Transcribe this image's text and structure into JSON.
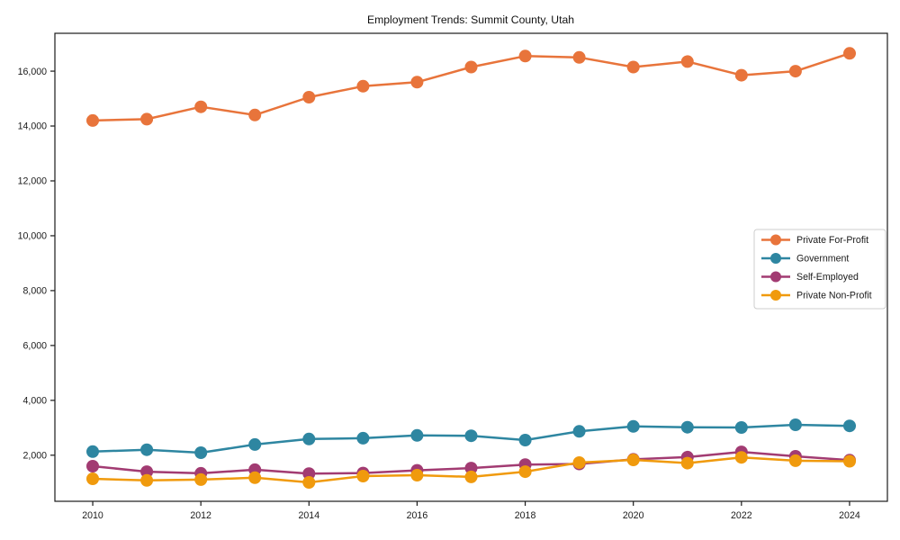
{
  "chart_data": {
    "type": "line",
    "title": "Employment Trends: Summit County, Utah",
    "xlabel": "",
    "ylabel": "",
    "x": [
      2010,
      2011,
      2012,
      2013,
      2014,
      2015,
      2016,
      2017,
      2018,
      2019,
      2020,
      2021,
      2022,
      2023,
      2024
    ],
    "series": [
      {
        "name": "Private For-Profit",
        "color": "#E8743B",
        "values": [
          14200,
          14250,
          14700,
          14400,
          15050,
          15450,
          15600,
          16150,
          16550,
          16500,
          16150,
          16350,
          15850,
          16000,
          16650
        ]
      },
      {
        "name": "Government",
        "color": "#2E86A1",
        "values": [
          2130,
          2200,
          2090,
          2390,
          2590,
          2620,
          2720,
          2710,
          2550,
          2870,
          3050,
          3020,
          3010,
          3110,
          3070
        ]
      },
      {
        "name": "Self-Employed",
        "color": "#A23B72",
        "values": [
          1600,
          1400,
          1340,
          1470,
          1330,
          1350,
          1450,
          1530,
          1660,
          1680,
          1850,
          1930,
          2120,
          1960,
          1820
        ]
      },
      {
        "name": "Private Non-Profit",
        "color": "#F09A0D",
        "values": [
          1140,
          1080,
          1110,
          1180,
          1010,
          1240,
          1270,
          1210,
          1400,
          1730,
          1830,
          1710,
          1920,
          1800,
          1780
        ]
      }
    ],
    "x_ticks": {
      "values": [
        2010,
        2012,
        2014,
        2016,
        2018,
        2020,
        2022,
        2024
      ],
      "labels": [
        "2010",
        "2012",
        "2014",
        "2016",
        "2018",
        "2020",
        "2022",
        "2024"
      ]
    },
    "y_ticks": {
      "values": [
        2000,
        4000,
        6000,
        8000,
        10000,
        12000,
        14000,
        16000
      ],
      "labels": [
        "2,000",
        "4,000",
        "6,000",
        "8,000",
        "10,000",
        "12,000",
        "14,000",
        "16,000"
      ]
    },
    "xlim": [
      2009.3,
      2024.7
    ],
    "ylim": [
      320,
      17380
    ],
    "grid": false,
    "legend": {
      "position": "center right",
      "entries": [
        "Private For-Profit",
        "Government",
        "Self-Employed",
        "Private Non-Profit"
      ]
    },
    "frame_color": "#1a1a1a",
    "background_color": "#ffffff"
  }
}
